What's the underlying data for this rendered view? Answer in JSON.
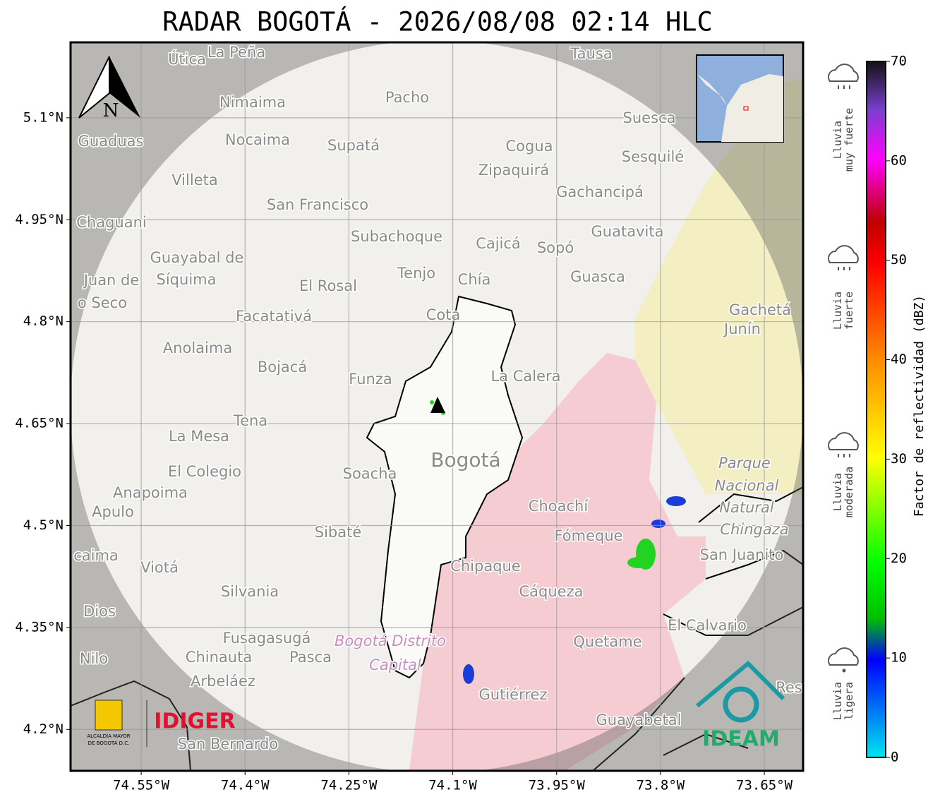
{
  "title": "RADAR BOGOTÁ - 2026/08/08 02:14 HLC",
  "map": {
    "xlim": [
      -74.652,
      -73.594
    ],
    "ylim": [
      4.139,
      5.211
    ],
    "xticks": [
      {
        "value": -74.55,
        "label": "74.55°W"
      },
      {
        "value": -74.4,
        "label": "74.4°W"
      },
      {
        "value": -74.25,
        "label": "74.25°W"
      },
      {
        "value": -74.1,
        "label": "74.1°W"
      },
      {
        "value": -73.95,
        "label": "73.95°W"
      },
      {
        "value": -73.8,
        "label": "73.8°W"
      },
      {
        "value": -73.65,
        "label": "73.65°W"
      }
    ],
    "yticks": [
      {
        "value": 4.2,
        "label": "4.2°N"
      },
      {
        "value": 4.35,
        "label": "4.35°N"
      },
      {
        "value": 4.5,
        "label": "4.5°N"
      },
      {
        "value": 4.65,
        "label": "4.65°N"
      },
      {
        "value": 4.8,
        "label": "4.8°N"
      },
      {
        "value": 4.95,
        "label": "4.95°N"
      },
      {
        "value": 5.1,
        "label": "5.1°N"
      }
    ],
    "north_label": "N",
    "places": [
      "Útica",
      "La Peña",
      "Tausa",
      "Pacho",
      "Nimaima",
      "Guaduas",
      "Nocaima",
      "Supatá",
      "Cogua",
      "Suesca",
      "Sesquilé",
      "Zipaquirá",
      "Villeta",
      "Gachancipá",
      "San Francisco",
      "Chaguani",
      "Guatavita",
      "Subachoque",
      "Cajicá",
      "Sopó",
      "Guayabal de",
      "Síquima",
      "Juan de",
      "o Seco",
      "Tenjo",
      "El Rosal",
      "Chía",
      "Guasca",
      "Gachetá",
      "Junín",
      "Facatativá",
      "Cota",
      "Anolaima",
      "Bojacá",
      "Funza",
      "La Calera",
      "Tena",
      "La Mesa",
      "Bogotá",
      "Parque",
      "Nacional",
      "Natural",
      "Chingaza",
      "El Colegio",
      "Soacha",
      "Anapoima",
      "Apulo",
      "Choachí",
      "Fómeque",
      "San Juanito",
      "Sibaté",
      "caima",
      "Viotá",
      "Chipaque",
      "Cáqueza",
      "Silvania",
      "Dios",
      "El Calvario",
      "Fusagasugá",
      "Quetame",
      "Bogotá Distrito",
      "Capital",
      "Nilo",
      "Chinauta",
      "Pasca",
      "Arbeláez",
      "Gutiérrez",
      "Res",
      "Guayabetal",
      "San Bernardo"
    ]
  },
  "colorbar": {
    "label": "Factor de reflectividad (dBZ)",
    "lim": [
      0,
      70
    ],
    "ticks": [
      0,
      10,
      20,
      30,
      40,
      50,
      60,
      70
    ],
    "categories": [
      [
        "Lluvia",
        "muy fuerte"
      ],
      [
        "Lluvia",
        "fuerte"
      ],
      [
        "Lluvia",
        "moderada"
      ],
      [
        "Lluvia",
        "ligera"
      ]
    ]
  },
  "logos": {
    "alcaldia": [
      "ALCALDÍA MAYOR",
      "DE BOGOTÁ D.C."
    ],
    "idiger": "IDIGER",
    "ideam": "IDEAM"
  }
}
